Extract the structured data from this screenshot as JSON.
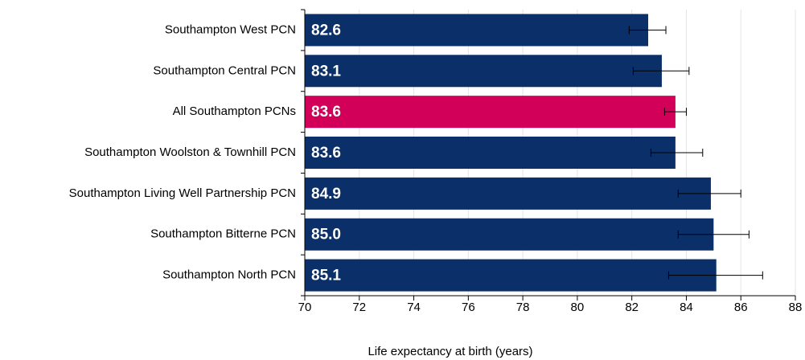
{
  "chart_data": {
    "type": "barh",
    "xlabel": "Life expectancy at birth (years)",
    "categories": [
      "Southampton West PCN",
      "Southampton Central PCN",
      "All Southampton PCNs",
      "Southampton Woolston & Townhill PCN",
      "Southampton Living Well Partnership PCN",
      "Southampton Bitterne PCN",
      "Southampton North PCN"
    ],
    "values": [
      82.6,
      83.1,
      83.6,
      83.6,
      84.9,
      85.0,
      85.1
    ],
    "value_labels": [
      "82.6",
      "83.1",
      "83.6",
      "83.6",
      "84.9",
      "85.0",
      "85.1"
    ],
    "ci_lower": [
      81.9,
      82.05,
      83.2,
      82.7,
      83.7,
      83.7,
      83.35
    ],
    "ci_upper": [
      83.25,
      84.1,
      84.0,
      84.6,
      86.0,
      86.3,
      86.8
    ],
    "colors": [
      "#0b3069",
      "#0b3069",
      "#d3005a",
      "#0b3069",
      "#0b3069",
      "#0b3069",
      "#0b3069"
    ],
    "xlim": [
      70,
      88
    ],
    "xticks": [
      70,
      72,
      74,
      76,
      78,
      80,
      82,
      84,
      86,
      88
    ],
    "grid": true
  }
}
